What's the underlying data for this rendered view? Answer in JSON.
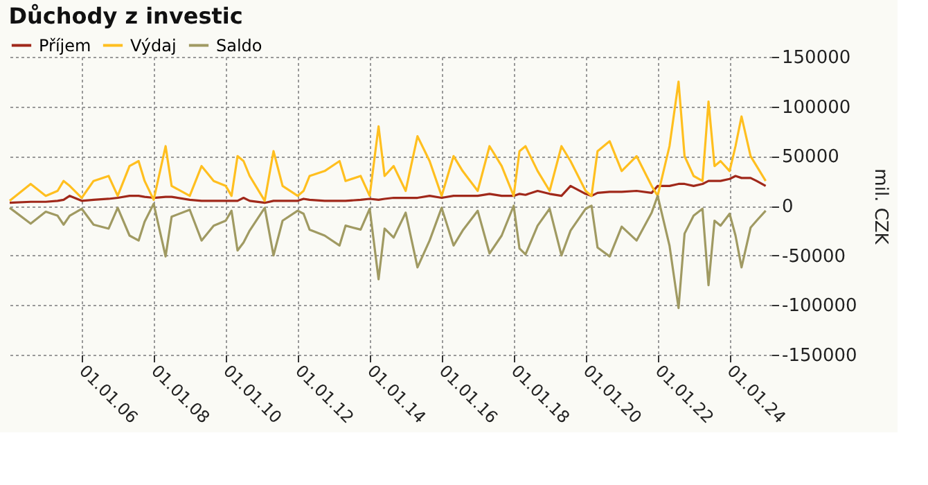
{
  "chart_data": {
    "type": "line",
    "title": "Důchody z investic",
    "ylabel": "mil. CZK",
    "x": [
      "2004-01",
      "2004-08",
      "2005-01",
      "2005-05",
      "2005-07",
      "2005-09",
      "2006-01",
      "2006-05",
      "2006-10",
      "2007-01",
      "2007-05",
      "2007-08",
      "2007-10",
      "2008-01",
      "2008-05",
      "2008-07",
      "2009-01",
      "2009-05",
      "2009-09",
      "2010-01",
      "2010-03",
      "2010-05",
      "2010-07",
      "2010-09",
      "2011-02",
      "2011-05",
      "2011-08",
      "2012-01",
      "2012-03",
      "2012-05",
      "2012-10",
      "2013-03",
      "2013-05",
      "2013-10",
      "2014-01",
      "2014-04",
      "2014-06",
      "2014-09",
      "2015-01",
      "2015-05",
      "2015-09",
      "2016-01",
      "2016-05",
      "2016-08",
      "2017-01",
      "2017-05",
      "2017-09",
      "2018-01",
      "2018-03",
      "2018-05",
      "2018-09",
      "2019-01",
      "2019-05",
      "2019-08",
      "2020-01",
      "2020-03",
      "2020-05",
      "2020-09",
      "2021-01",
      "2021-06",
      "2021-11",
      "2022-01",
      "2022-05",
      "2022-08",
      "2022-10",
      "2023-01",
      "2023-04",
      "2023-06",
      "2023-08",
      "2023-10",
      "2024-01",
      "2024-03",
      "2024-05",
      "2024-08",
      "2024-10",
      "2025-01"
    ],
    "series": [
      {
        "name": "Příjem",
        "color": "#a0281a",
        "values": [
          3000,
          4000,
          4000,
          5000,
          6000,
          10000,
          5000,
          6000,
          7000,
          8000,
          10000,
          10000,
          9000,
          8000,
          9000,
          9000,
          6000,
          5000,
          5000,
          5000,
          5000,
          5000,
          8000,
          5000,
          3000,
          5000,
          5000,
          5000,
          7000,
          6000,
          5000,
          5000,
          5000,
          6000,
          7000,
          6000,
          7000,
          8000,
          8000,
          8000,
          10000,
          8000,
          10000,
          10000,
          10000,
          12000,
          10000,
          10000,
          12000,
          11000,
          15000,
          12000,
          10000,
          20000,
          12000,
          10000,
          13000,
          14000,
          14000,
          15000,
          13000,
          20000,
          20000,
          22000,
          22000,
          20000,
          22000,
          25000,
          25000,
          25000,
          27000,
          30000,
          28000,
          28000,
          25000,
          20000
        ]
      },
      {
        "name": "Výdaj",
        "color": "#ffbf1f",
        "values": [
          5000,
          22000,
          10000,
          15000,
          25000,
          20000,
          8000,
          25000,
          30000,
          10000,
          40000,
          45000,
          25000,
          6000,
          60000,
          20000,
          10000,
          40000,
          25000,
          20000,
          10000,
          50000,
          45000,
          30000,
          5000,
          55000,
          20000,
          10000,
          15000,
          30000,
          35000,
          45000,
          25000,
          30000,
          10000,
          80000,
          30000,
          40000,
          15000,
          70000,
          45000,
          10000,
          50000,
          35000,
          15000,
          60000,
          40000,
          10000,
          55000,
          60000,
          35000,
          15000,
          60000,
          45000,
          15000,
          10000,
          55000,
          65000,
          35000,
          50000,
          20000,
          10000,
          60000,
          125000,
          50000,
          30000,
          25000,
          105000,
          40000,
          45000,
          35000,
          60000,
          90000,
          50000,
          40000,
          25000
        ]
      },
      {
        "name": "Saldo",
        "color": "#a09a62",
        "values": [
          -2000,
          -18000,
          -6000,
          -10000,
          -19000,
          -10000,
          -3000,
          -19000,
          -23000,
          -2000,
          -30000,
          -35000,
          -16000,
          2000,
          -51000,
          -11000,
          -4000,
          -35000,
          -20000,
          -15000,
          -5000,
          -45000,
          -37000,
          -25000,
          -2000,
          -50000,
          -15000,
          -5000,
          -8000,
          -24000,
          -30000,
          -40000,
          -20000,
          -24000,
          -3000,
          -74000,
          -23000,
          -32000,
          -7000,
          -62000,
          -35000,
          -2000,
          -40000,
          -25000,
          -5000,
          -48000,
          -30000,
          0,
          -43000,
          -49000,
          -20000,
          -3000,
          -50000,
          -25000,
          -3000,
          0,
          -42000,
          -51000,
          -21000,
          -35000,
          -7000,
          10000,
          -40000,
          -103000,
          -28000,
          -10000,
          -3000,
          -80000,
          -15000,
          -20000,
          -8000,
          -30000,
          -62000,
          -22000,
          -15000,
          -5000
        ]
      }
    ],
    "xlim": [
      "2004-01-01",
      "2025-03-01"
    ],
    "xticks": [
      {
        "value": "2006-01-01",
        "label": "01.01.06"
      },
      {
        "value": "2008-01-01",
        "label": "01.01.08"
      },
      {
        "value": "2010-01-01",
        "label": "01.01.10"
      },
      {
        "value": "2012-01-01",
        "label": "01.01.12"
      },
      {
        "value": "2014-01-01",
        "label": "01.01.14"
      },
      {
        "value": "2016-01-01",
        "label": "01.01.16"
      },
      {
        "value": "2018-01-01",
        "label": "01.01.18"
      },
      {
        "value": "2020-01-01",
        "label": "01.01.20"
      },
      {
        "value": "2022-01-01",
        "label": "01.01.22"
      },
      {
        "value": "2024-01-01",
        "label": "01.01.24"
      }
    ],
    "ylim": [
      -150000,
      150000
    ],
    "yticks": [
      -150000,
      -100000,
      -50000,
      0,
      50000,
      100000,
      150000
    ],
    "grid": true,
    "legend": "top",
    "marker": "none",
    "line_style": "solid"
  }
}
